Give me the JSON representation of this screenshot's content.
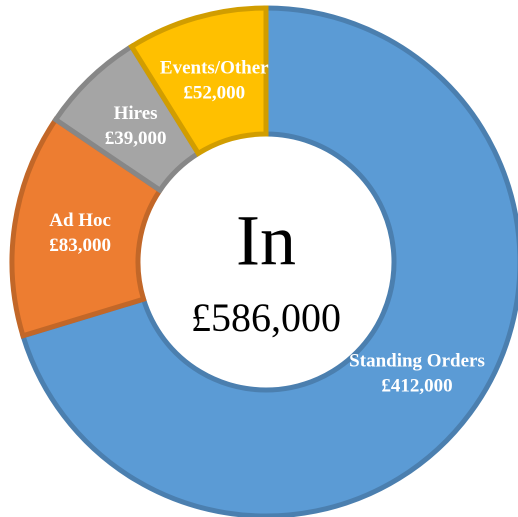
{
  "chart_data": {
    "type": "donut",
    "categories": [
      "Standing Orders",
      "Ad Hoc",
      "Hires",
      "Events/Other"
    ],
    "values": [
      412000,
      83000,
      39000,
      52000
    ],
    "value_labels": [
      "£412,000",
      "£83,000",
      "£39,000",
      "£52,000"
    ],
    "colors": [
      "#5b9bd5",
      "#ed7d31",
      "#a5a5a5",
      "#ffc000"
    ],
    "center_title": "In",
    "center_label": "£586,000"
  }
}
